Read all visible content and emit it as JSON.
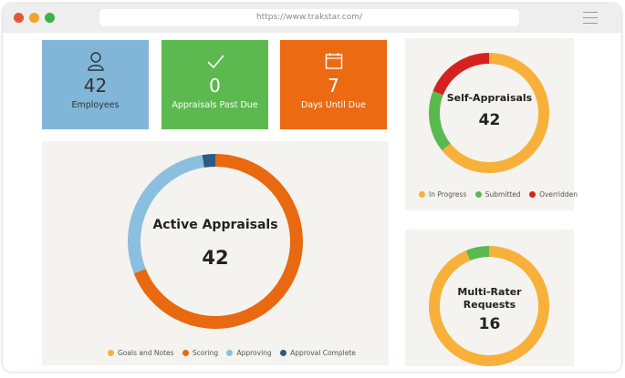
{
  "browser": {
    "url": "https://www.trakstar.com/",
    "dots": [
      "#e0583a",
      "#f2a12b",
      "#36b64a"
    ]
  },
  "stats": [
    {
      "value": "42",
      "label": "Employees",
      "icon": "user-icon",
      "color": "#82b6d9"
    },
    {
      "value": "0",
      "label": "Appraisals Past Due",
      "icon": "checkmark-icon",
      "color": "#5cb94f"
    },
    {
      "value": "7",
      "label": "Days Until Due",
      "icon": "calendar-icon",
      "color": "#eb6a12"
    }
  ],
  "active_appraisals": {
    "title": "Active Appraisals",
    "total": "42",
    "legend": [
      {
        "label": "Goals and Notes",
        "color": "#f7b13b"
      },
      {
        "label": "Scoring",
        "color": "#e8690f"
      },
      {
        "label": "Approving",
        "color": "#8bbfdf"
      },
      {
        "label": "Approval Complete",
        "color": "#2a5b81"
      }
    ]
  },
  "self_appraisals": {
    "title": "Self-Appraisals",
    "total": "42",
    "legend": [
      {
        "label": "In Progress",
        "color": "#f7b13b"
      },
      {
        "label": "Submitted",
        "color": "#59b94e"
      },
      {
        "label": "Overridden",
        "color": "#d6221f"
      }
    ]
  },
  "multi_rater": {
    "title_line1": "Multi-Rater",
    "title_line2": "Requests",
    "total": "16",
    "colors": {
      "main": "#f7b13b",
      "accent": "#59b94e"
    }
  },
  "chart_data": [
    {
      "type": "pie",
      "title": "Active Appraisals",
      "categories": [
        "Goals and Notes",
        "Scoring",
        "Approving",
        "Approval Complete"
      ],
      "values": [
        0,
        29,
        12,
        1
      ]
    },
    {
      "type": "pie",
      "title": "Self-Appraisals",
      "categories": [
        "In Progress",
        "Submitted",
        "Overridden"
      ],
      "values": [
        27,
        7,
        8
      ]
    },
    {
      "type": "pie",
      "title": "Multi-Rater Requests",
      "values": [
        15,
        1
      ]
    }
  ]
}
